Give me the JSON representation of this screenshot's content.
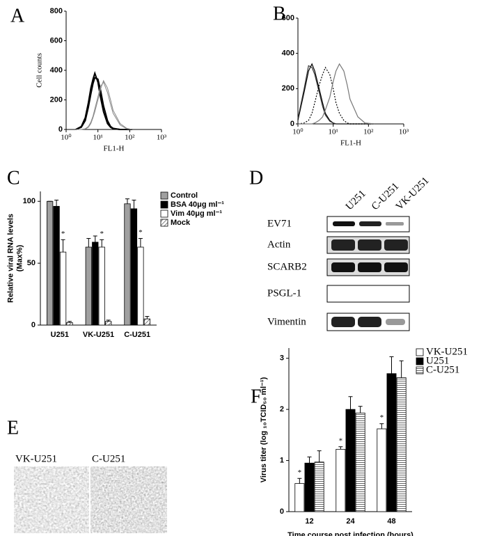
{
  "chart_data": [
    {
      "panel": "A",
      "type": "line",
      "xscale": "log",
      "xlim": [
        1,
        1000
      ],
      "xticks": [
        {
          "value": 1,
          "label": "10⁰"
        },
        {
          "value": 10,
          "label": "10¹"
        },
        {
          "value": 100,
          "label": "10²"
        },
        {
          "value": 1000,
          "label": "10³"
        }
      ],
      "ylim": [
        0,
        800
      ],
      "yticks": [
        0,
        200,
        400,
        600,
        800
      ],
      "ylabel": "Cell counts",
      "xlabel": "FL1-H",
      "x": [
        2,
        3,
        4,
        5,
        6,
        7,
        8,
        10,
        12,
        15,
        20,
        25,
        30,
        50,
        80,
        120
      ],
      "series": [
        {
          "color": "#000000",
          "width": 2,
          "values": [
            0,
            20,
            80,
            180,
            280,
            340,
            380,
            320,
            220,
            120,
            40,
            15,
            5,
            0,
            0,
            0
          ]
        },
        {
          "color": "#000000",
          "width": 2,
          "values": [
            0,
            15,
            60,
            150,
            240,
            310,
            350,
            340,
            270,
            160,
            60,
            20,
            8,
            0,
            0,
            0
          ]
        },
        {
          "color": "#888888",
          "width": 1,
          "values": [
            0,
            0,
            5,
            20,
            50,
            90,
            140,
            220,
            290,
            320,
            250,
            170,
            110,
            30,
            5,
            0
          ]
        },
        {
          "color": "#888888",
          "width": 1,
          "values": [
            0,
            0,
            3,
            15,
            40,
            80,
            120,
            200,
            270,
            330,
            280,
            200,
            130,
            40,
            8,
            0
          ]
        }
      ]
    },
    {
      "panel": "B",
      "type": "line",
      "xscale": "log",
      "xlim": [
        1,
        1000
      ],
      "xticks": [
        {
          "value": 1,
          "label": "10⁰"
        },
        {
          "value": 10,
          "label": "10¹"
        },
        {
          "value": 100,
          "label": "10²"
        },
        {
          "value": 1000,
          "label": "10³"
        }
      ],
      "ylim": [
        0,
        600
      ],
      "yticks": [
        0,
        200,
        400,
        600
      ],
      "xlabel": "FL1-H",
      "x": [
        1,
        1.5,
        2,
        2.5,
        3,
        4,
        5,
        6,
        8,
        10,
        12,
        15,
        20,
        25,
        30,
        50,
        80,
        150
      ],
      "series": [
        {
          "color": "#000000",
          "width": 1.2,
          "values": [
            20,
            180,
            300,
            340,
            300,
            200,
            120,
            60,
            20,
            5,
            0,
            0,
            0,
            0,
            0,
            0,
            0,
            0
          ]
        },
        {
          "color": "#333333",
          "width": 1.2,
          "values": [
            30,
            200,
            330,
            320,
            280,
            180,
            100,
            50,
            15,
            5,
            0,
            0,
            0,
            0,
            0,
            0,
            0,
            0
          ]
        },
        {
          "color": "#000000",
          "width": 1.2,
          "dash": "dotted",
          "values": [
            0,
            5,
            20,
            60,
            120,
            220,
            280,
            320,
            280,
            200,
            120,
            60,
            20,
            5,
            0,
            0,
            0,
            0
          ]
        },
        {
          "color": "#777777",
          "width": 1.2,
          "values": [
            0,
            0,
            0,
            0,
            5,
            20,
            40,
            80,
            150,
            240,
            300,
            340,
            300,
            220,
            140,
            40,
            5,
            0
          ]
        }
      ]
    },
    {
      "panel": "C",
      "type": "bar",
      "ylim": [
        0,
        108
      ],
      "yticks": [
        0,
        50,
        100
      ],
      "ylabel": [
        "Relative viral RNA levels",
        "(Max%)"
      ],
      "legend": "right",
      "categories": [
        "U251",
        "VK-U251",
        "C-U251"
      ],
      "series": [
        {
          "name": "Control",
          "color": "#a0a0a0",
          "values": [
            100,
            63,
            98
          ],
          "errors": [
            0,
            7,
            4
          ]
        },
        {
          "name": "BSA 40μg ml⁻¹",
          "color": "#000000",
          "values": [
            96,
            67,
            94
          ],
          "errors": [
            5,
            5,
            7
          ]
        },
        {
          "name": "Vim  40μg ml⁻¹",
          "color": "#ffffff",
          "values": [
            59,
            63,
            63
          ],
          "errors": [
            10,
            6,
            7
          ],
          "annotation": "*"
        },
        {
          "name": "Mock",
          "pattern": "hatch",
          "values": [
            2,
            3,
            5
          ],
          "errors": [
            1,
            1,
            2
          ]
        }
      ]
    },
    {
      "panel": "F",
      "type": "bar",
      "ylim": [
        0,
        3.2
      ],
      "yticks": [
        0,
        1,
        2,
        3
      ],
      "ylabel": [
        "Virus titer (log ₁₀TCID₅₀ ml⁻¹)"
      ],
      "xlabel": "Time course post infection (hours)",
      "legend": "right",
      "categories": [
        "12",
        "24",
        "48"
      ],
      "series": [
        {
          "name": "VK-U251",
          "color": "#ffffff",
          "values": [
            0.55,
            1.22,
            1.62
          ],
          "errors": [
            0.1,
            0.05,
            0.1
          ],
          "annotation": "*"
        },
        {
          "name": "U251",
          "color": "#000000",
          "values": [
            0.95,
            2.0,
            2.7
          ],
          "errors": [
            0.12,
            0.25,
            0.33
          ]
        },
        {
          "name": "C-U251",
          "pattern": "stripes",
          "values": [
            0.97,
            1.93,
            2.62
          ],
          "errors": [
            0.22,
            0.13,
            0.33
          ]
        }
      ]
    }
  ],
  "blot": {
    "panel": "D",
    "lanes": [
      "U251",
      "C-U251",
      "VK-U251"
    ],
    "rows": [
      "EV71",
      "Actin",
      "SCARB2",
      "PSGL-1",
      "Vimentin"
    ]
  },
  "micrograph": {
    "panel": "E",
    "labels": [
      "VK-U251",
      "C-U251"
    ]
  }
}
